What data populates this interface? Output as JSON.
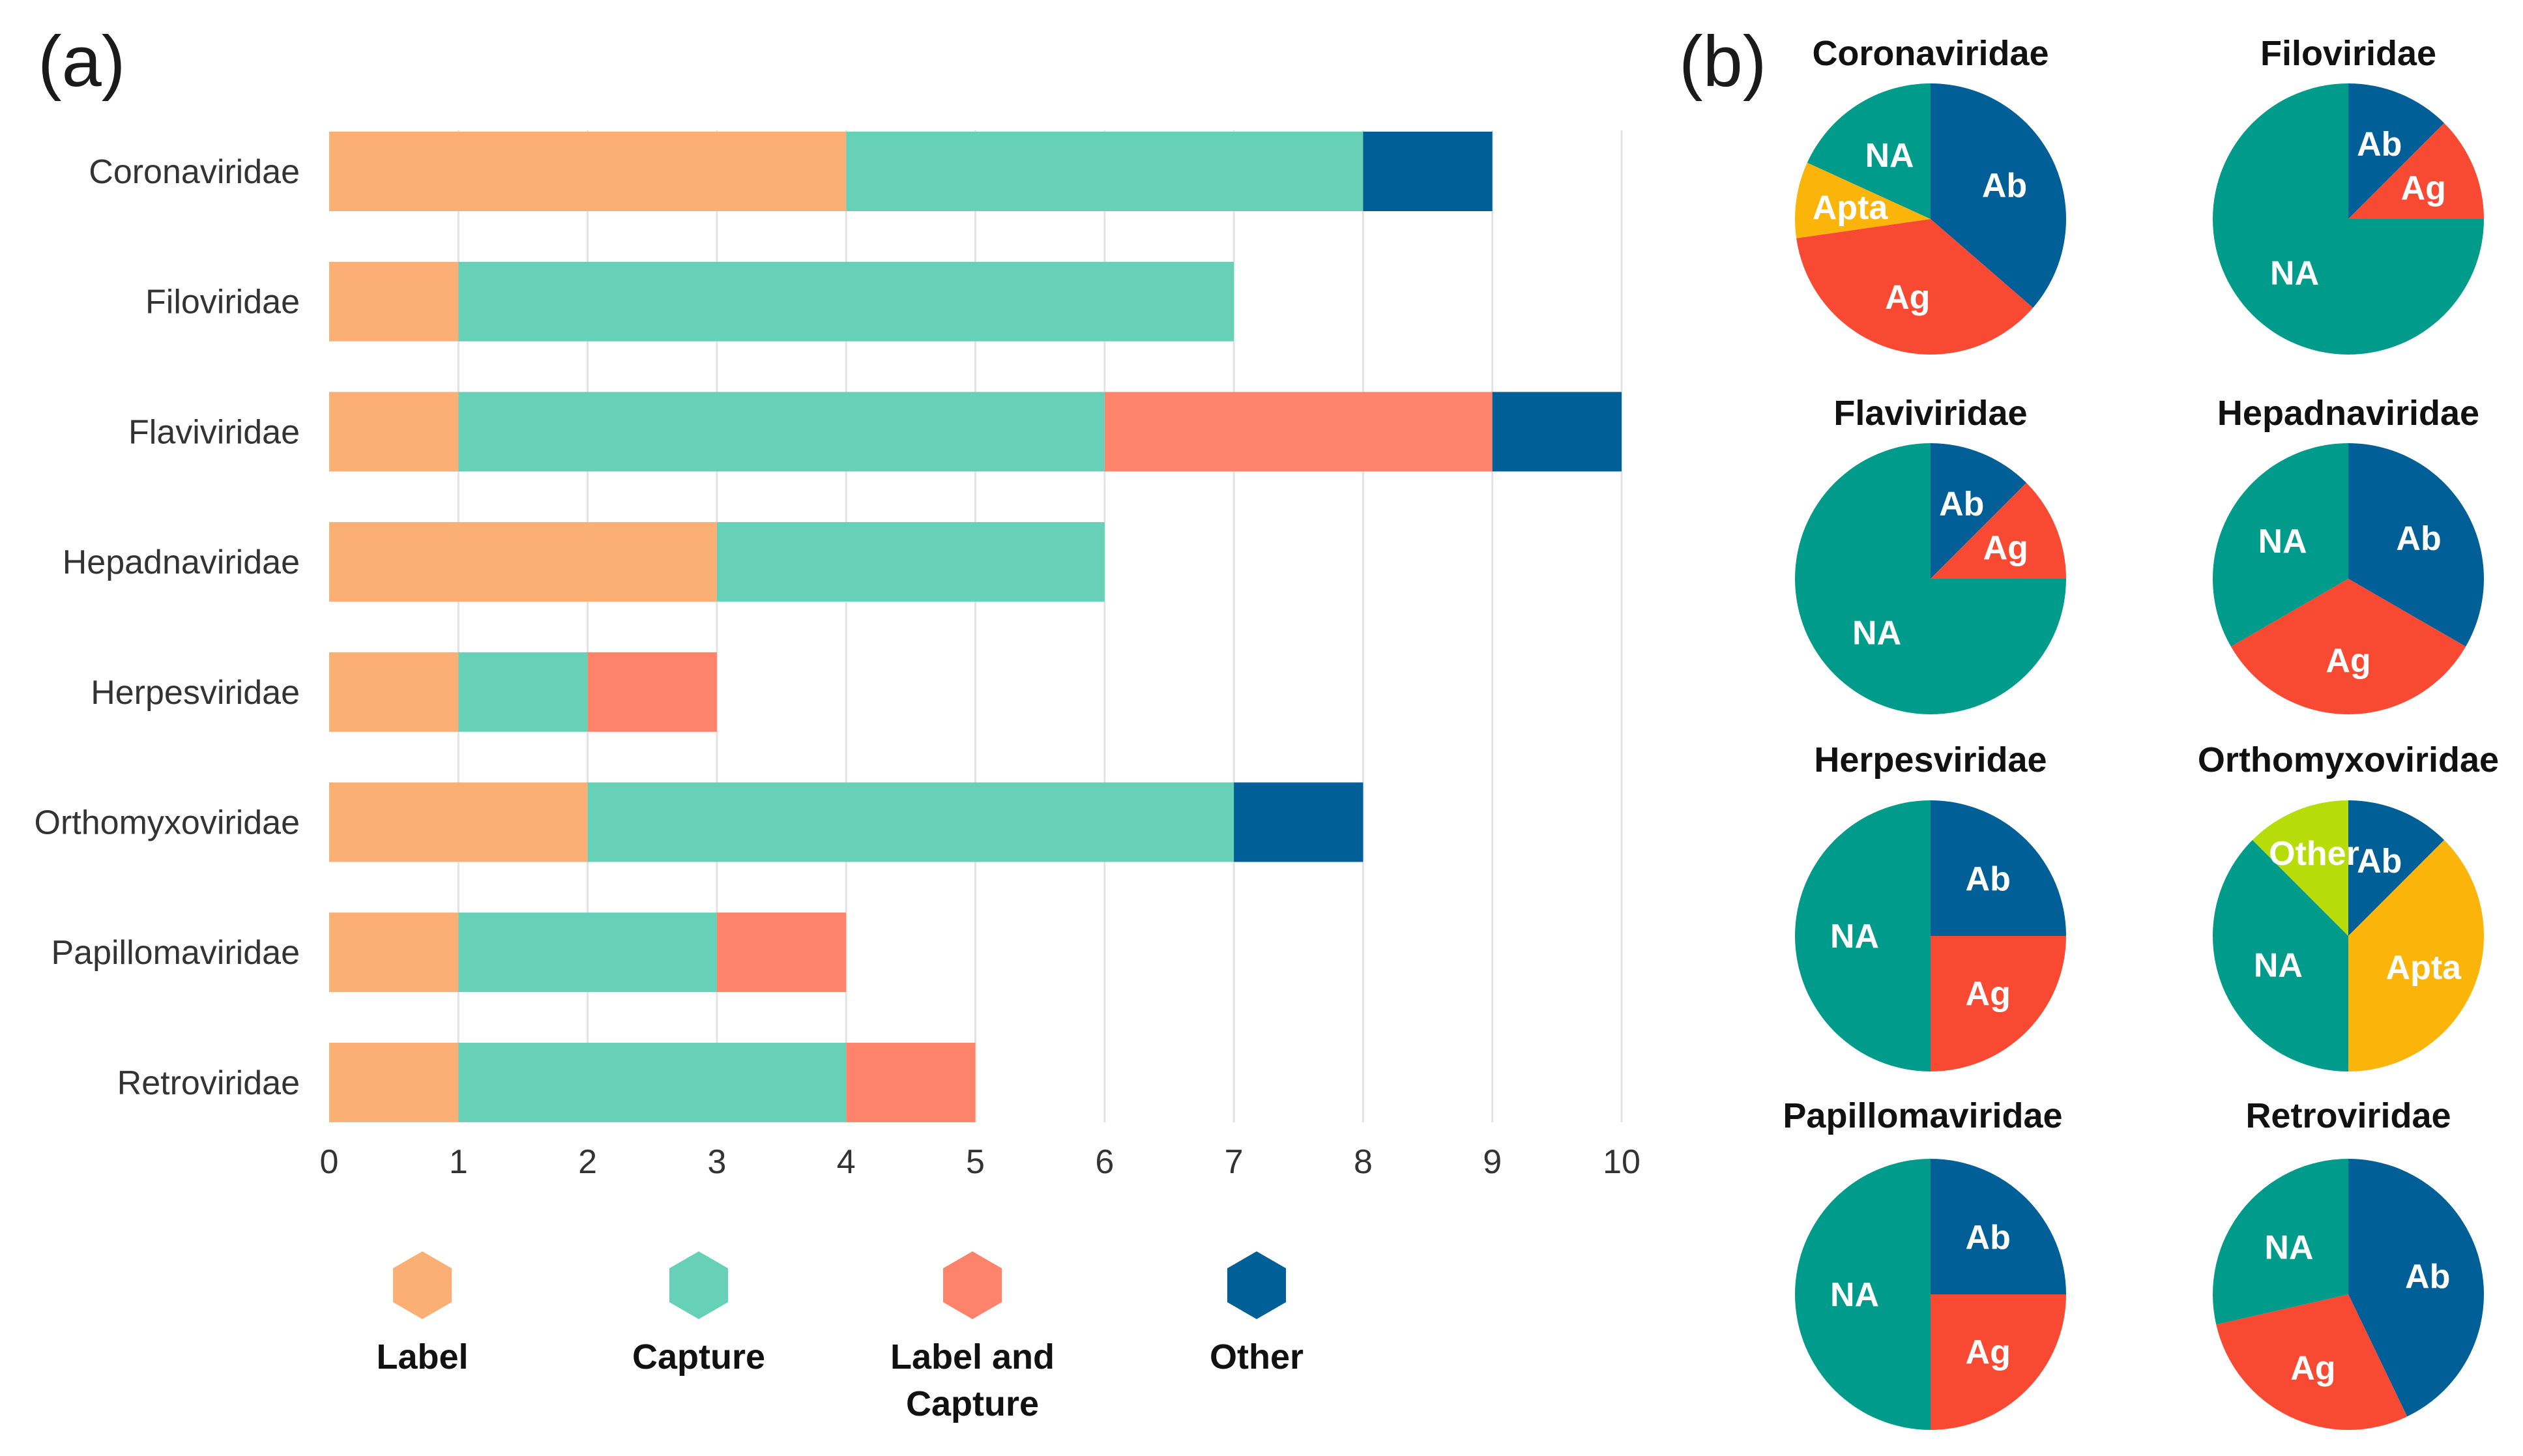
{
  "panel_labels": [
    "(a)",
    "(b)"
  ],
  "chart_data": [
    {
      "type": "bar",
      "orientation": "horizontal",
      "stacked": true,
      "categories": [
        "Coronaviridae",
        "Filoviridae",
        "Flaviviridae",
        "Hepadnaviridae",
        "Herpesviridae",
        "Orthomyxoviridae",
        "Papillomaviridae",
        "Retroviridae"
      ],
      "series": [
        {
          "name": "Label",
          "color": "#FBAF74",
          "values": [
            4,
            1,
            1,
            3,
            1,
            2,
            1,
            1
          ]
        },
        {
          "name": "Capture",
          "color": "#66D1B6",
          "values": [
            4,
            6,
            5,
            3,
            1,
            5,
            2,
            3
          ]
        },
        {
          "name": "Label and Capture",
          "color": "#FD846A",
          "values": [
            0,
            0,
            3,
            0,
            1,
            0,
            1,
            1
          ]
        },
        {
          "name": "Other",
          "color": "#005F96",
          "values": [
            1,
            0,
            1,
            0,
            0,
            1,
            0,
            0
          ]
        }
      ],
      "xlim": [
        0,
        10
      ],
      "xticks": [
        "0",
        "1",
        "2",
        "3",
        "4",
        "5",
        "6",
        "7",
        "8",
        "9",
        "10"
      ],
      "grid": true,
      "legend": [
        {
          "lines": [
            "Label"
          ],
          "color": "#FBAF74"
        },
        {
          "lines": [
            "Capture"
          ],
          "color": "#66D1B6"
        },
        {
          "lines": [
            "Label and",
            "Capture"
          ],
          "color": "#FD846A"
        },
        {
          "lines": [
            "Other"
          ],
          "color": "#005F96"
        }
      ],
      "legend_position": "bottom"
    },
    {
      "type": "pie",
      "title": "Coronaviridae",
      "slices": [
        {
          "label": "Ab",
          "value": 4,
          "color": "#005F96"
        },
        {
          "label": "Ag",
          "value": 4,
          "color": "#F84A33"
        },
        {
          "label": "Apta",
          "value": 1,
          "color": "#FBB40A"
        },
        {
          "label": "NA",
          "value": 2,
          "color": "#009B8A"
        }
      ]
    },
    {
      "type": "pie",
      "title": "Filoviridae",
      "slices": [
        {
          "label": "Ab",
          "value": 1,
          "color": "#005F96"
        },
        {
          "label": "Ag",
          "value": 1,
          "color": "#F84A33"
        },
        {
          "label": "NA",
          "value": 6,
          "color": "#009B8A"
        }
      ]
    },
    {
      "type": "pie",
      "title": "Flaviviridae",
      "slices": [
        {
          "label": "Ab",
          "value": 1,
          "color": "#005F96"
        },
        {
          "label": "Ag",
          "value": 1,
          "color": "#F84A33"
        },
        {
          "label": "NA",
          "value": 6,
          "color": "#009B8A"
        }
      ]
    },
    {
      "type": "pie",
      "title": "Hepadnaviridae",
      "slices": [
        {
          "label": "Ab",
          "value": 1,
          "color": "#005F96"
        },
        {
          "label": "Ag",
          "value": 1,
          "color": "#F84A33"
        },
        {
          "label": "NA",
          "value": 1,
          "color": "#009B8A"
        }
      ]
    },
    {
      "type": "pie",
      "title": "Herpesviridae",
      "slices": [
        {
          "label": "Ab",
          "value": 1,
          "color": "#005F96"
        },
        {
          "label": "Ag",
          "value": 1,
          "color": "#F84A33"
        },
        {
          "label": "NA",
          "value": 2,
          "color": "#009B8A"
        }
      ]
    },
    {
      "type": "pie",
      "title": "Orthomyxoviridae",
      "slices": [
        {
          "label": "Ab",
          "value": 1,
          "color": "#005F96"
        },
        {
          "label": "Apta",
          "value": 3,
          "color": "#FBB40A"
        },
        {
          "label": "NA",
          "value": 3,
          "color": "#009B8A"
        },
        {
          "label": "Other",
          "value": 1,
          "color": "#B8DC0A"
        }
      ]
    },
    {
      "type": "pie",
      "title": "Papillomaviridae",
      "slices": [
        {
          "label": "Ab",
          "value": 1,
          "color": "#005F96"
        },
        {
          "label": "Ag",
          "value": 1,
          "color": "#F84A33"
        },
        {
          "label": "NA",
          "value": 2,
          "color": "#009B8A"
        }
      ]
    },
    {
      "type": "pie",
      "title": "Retroviridae",
      "slices": [
        {
          "label": "Ab",
          "value": 3,
          "color": "#005F96"
        },
        {
          "label": "Ag",
          "value": 2,
          "color": "#F84A33"
        },
        {
          "label": "NA",
          "value": 2,
          "color": "#009B8A"
        }
      ]
    }
  ]
}
